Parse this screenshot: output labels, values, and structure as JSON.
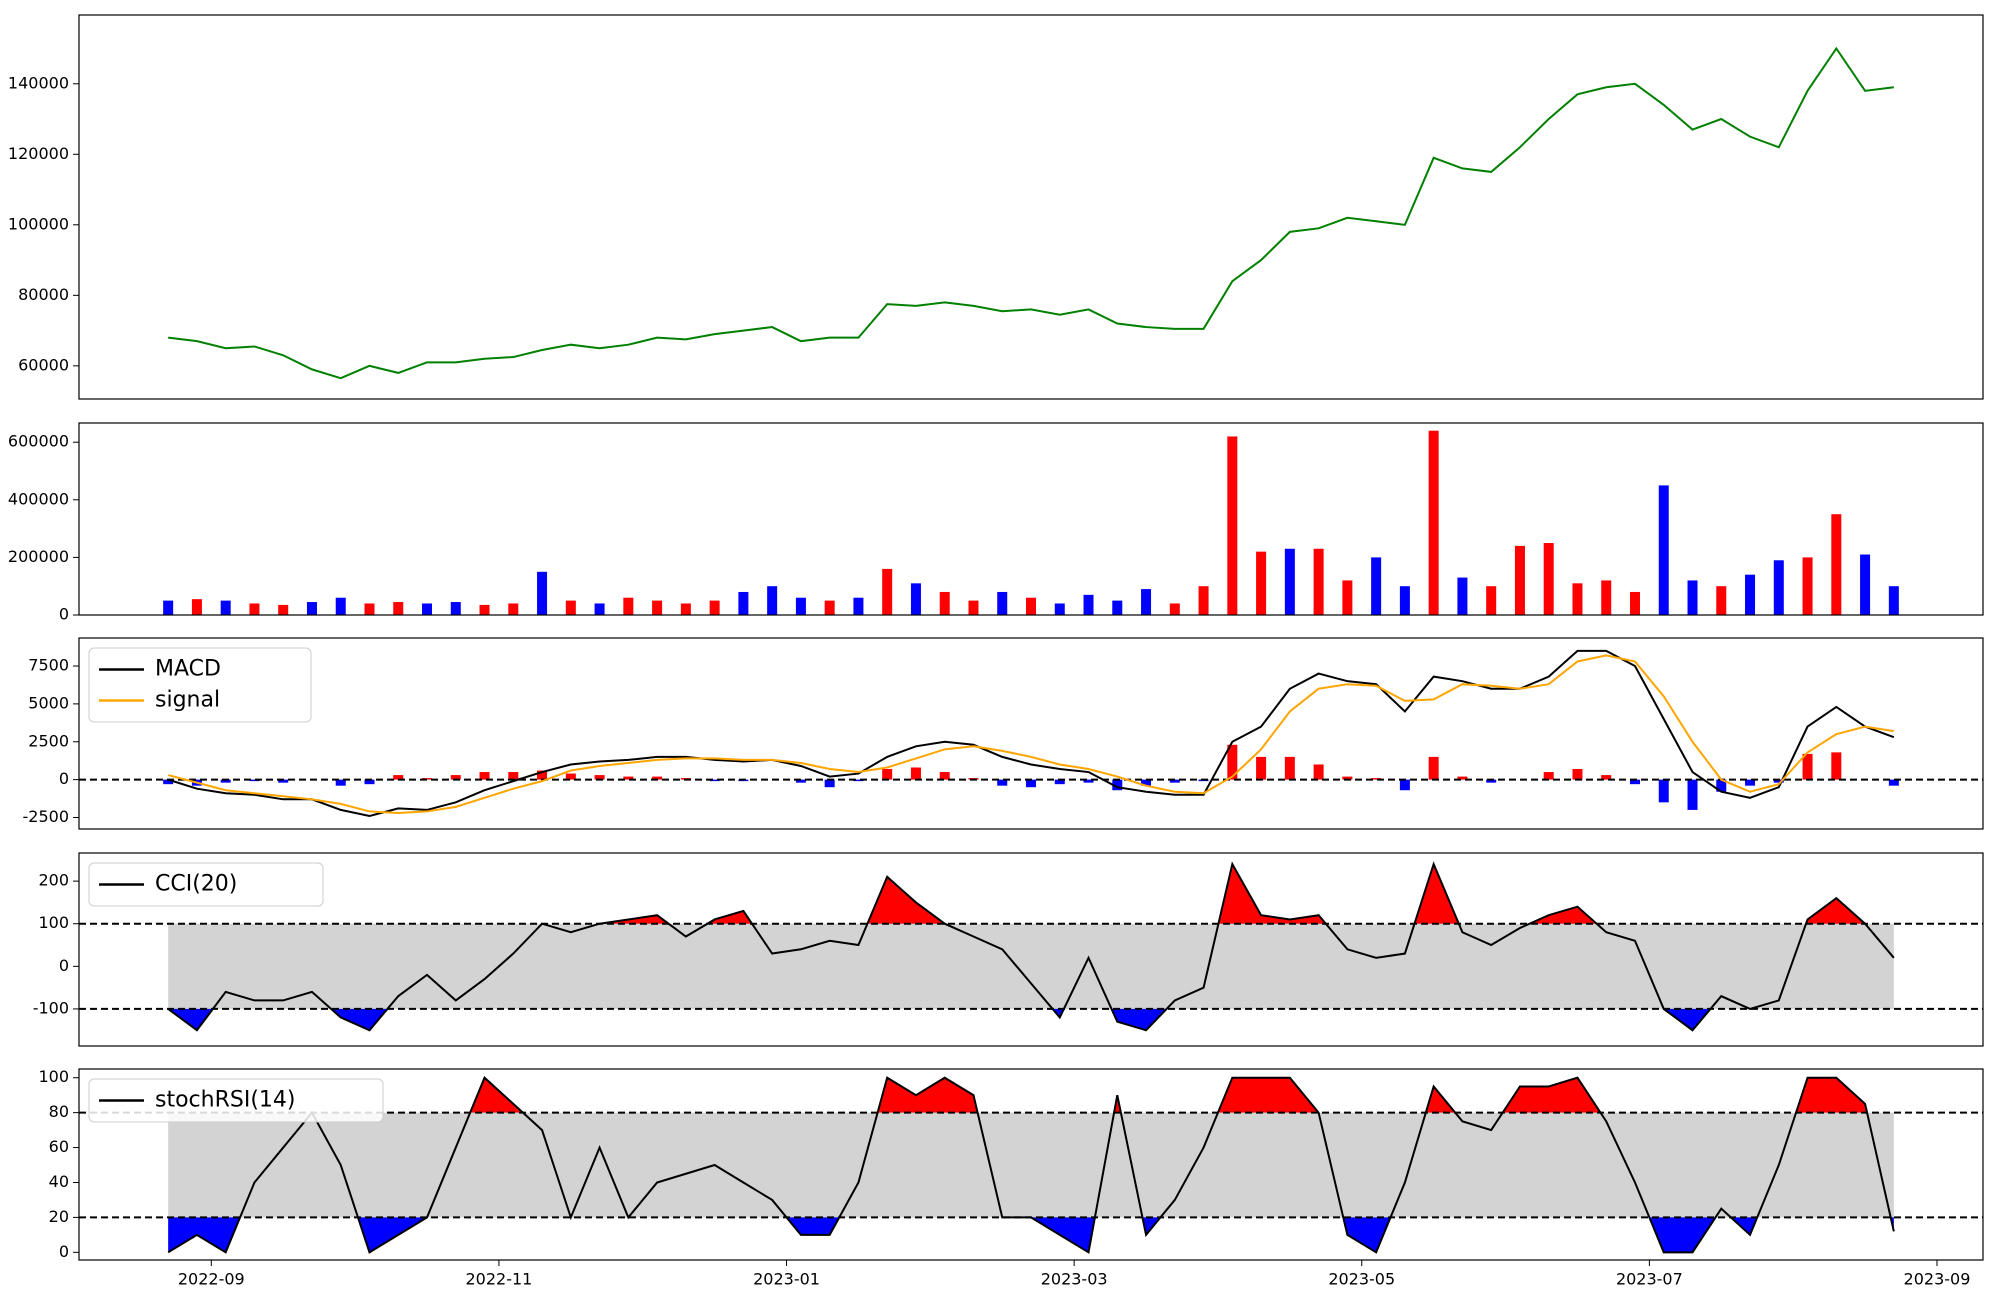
{
  "chart_data": [
    {
      "type": "line",
      "x": [
        -0.3,
        -0.1,
        0.1,
        0.3,
        0.5,
        0.7,
        0.9,
        1.1,
        1.3,
        1.5,
        1.7,
        1.9,
        2.1,
        2.3,
        2.5,
        2.7,
        2.9,
        3.1,
        3.3,
        3.5,
        3.7,
        3.9,
        4.1,
        4.3,
        4.5,
        4.7,
        4.9,
        5.1,
        5.3,
        5.5,
        5.7,
        5.9,
        6.1,
        6.3,
        6.5,
        6.7,
        6.9,
        7.1,
        7.3,
        7.5,
        7.7,
        7.9,
        8.1,
        8.3,
        8.5,
        8.7,
        8.9,
        9.1,
        9.3,
        9.5,
        9.7,
        9.9,
        10.1,
        10.3,
        10.5,
        10.7,
        10.9,
        11.1,
        11.3,
        11.5,
        11.7
      ],
      "xlim": [
        -0.92,
        12.32
      ],
      "ylim": [
        50600,
        159500
      ],
      "yticks": [
        60000,
        80000,
        100000,
        120000,
        140000
      ],
      "series": [
        {
          "color": "green",
          "values": [
            68000,
            67000,
            65000,
            65500,
            63000,
            59000,
            56500,
            60000,
            58000,
            61000,
            61000,
            62000,
            62500,
            64500,
            66000,
            65000,
            66000,
            68000,
            67500,
            69000,
            70000,
            71000,
            67000,
            68000,
            68000,
            77500,
            77000,
            78000,
            77000,
            75500,
            76000,
            74500,
            76000,
            72000,
            71000,
            70500,
            70500,
            84000,
            90000,
            98000,
            99000,
            102000,
            101000,
            100000,
            119000,
            116000,
            115000,
            122000,
            130000,
            137000,
            139000,
            140000,
            134000,
            127000,
            130000,
            125000,
            122000,
            138000,
            150000,
            138000,
            139000
          ]
        }
      ]
    },
    {
      "type": "bar",
      "x": [
        -0.3,
        -0.1,
        0.1,
        0.3,
        0.5,
        0.7,
        0.9,
        1.1,
        1.3,
        1.5,
        1.7,
        1.9,
        2.1,
        2.3,
        2.5,
        2.7,
        2.9,
        3.1,
        3.3,
        3.5,
        3.7,
        3.9,
        4.1,
        4.3,
        4.5,
        4.7,
        4.9,
        5.1,
        5.3,
        5.5,
        5.7,
        5.9,
        6.1,
        6.3,
        6.5,
        6.7,
        6.9,
        7.1,
        7.3,
        7.5,
        7.7,
        7.9,
        8.1,
        8.3,
        8.5,
        8.7,
        8.9,
        9.1,
        9.3,
        9.5,
        9.7,
        9.9,
        10.1,
        10.3,
        10.5,
        10.7,
        10.9,
        11.1,
        11.3,
        11.5,
        11.7
      ],
      "xlim": [
        -0.92,
        12.32
      ],
      "ylim": [
        0,
        666700
      ],
      "yticks": [
        0,
        200000,
        400000,
        600000
      ],
      "values": [
        50000,
        55000,
        50000,
        40000,
        35000,
        45000,
        60000,
        40000,
        45000,
        40000,
        45000,
        35000,
        40000,
        150000,
        50000,
        40000,
        60000,
        50000,
        40000,
        50000,
        80000,
        100000,
        60000,
        50000,
        60000,
        160000,
        110000,
        80000,
        50000,
        80000,
        60000,
        40000,
        70000,
        50000,
        90000,
        40000,
        100000,
        620000,
        220000,
        230000,
        230000,
        120000,
        200000,
        100000,
        640000,
        130000,
        100000,
        240000,
        250000,
        110000,
        120000,
        80000,
        450000,
        120000,
        100000,
        140000,
        190000,
        200000,
        350000,
        210000,
        100000
      ],
      "colors": [
        "blue",
        "red",
        "blue",
        "red",
        "red",
        "blue",
        "blue",
        "red",
        "red",
        "blue",
        "blue",
        "red",
        "red",
        "blue",
        "red",
        "blue",
        "red",
        "red",
        "red",
        "red",
        "blue",
        "blue",
        "blue",
        "red",
        "blue",
        "red",
        "blue",
        "red",
        "red",
        "blue",
        "red",
        "blue",
        "blue",
        "blue",
        "blue",
        "red",
        "red",
        "red",
        "red",
        "blue",
        "red",
        "red",
        "blue",
        "blue",
        "red",
        "blue",
        "red",
        "red",
        "red",
        "red",
        "red",
        "red",
        "blue",
        "blue",
        "red",
        "blue",
        "blue",
        "red",
        "red",
        "blue",
        "blue"
      ]
    },
    {
      "type": "line",
      "x": [
        -0.3,
        -0.1,
        0.1,
        0.3,
        0.5,
        0.7,
        0.9,
        1.1,
        1.3,
        1.5,
        1.7,
        1.9,
        2.1,
        2.3,
        2.5,
        2.7,
        2.9,
        3.1,
        3.3,
        3.5,
        3.7,
        3.9,
        4.1,
        4.3,
        4.5,
        4.7,
        4.9,
        5.1,
        5.3,
        5.5,
        5.7,
        5.9,
        6.1,
        6.3,
        6.5,
        6.7,
        6.9,
        7.1,
        7.3,
        7.5,
        7.7,
        7.9,
        8.1,
        8.3,
        8.5,
        8.7,
        8.9,
        9.1,
        9.3,
        9.5,
        9.7,
        9.9,
        10.1,
        10.3,
        10.5,
        10.7,
        10.9,
        11.1,
        11.3,
        11.5,
        11.7
      ],
      "xlim": [
        -0.92,
        12.32
      ],
      "ylim": [
        -3260,
        9350
      ],
      "yticks": [
        -2500,
        0,
        2500,
        5000,
        7500
      ],
      "hlines": [
        0
      ],
      "legend": "upper left",
      "series": [
        {
          "name": "MACD",
          "color": "black",
          "values": [
            0,
            -600,
            -900,
            -1000,
            -1300,
            -1300,
            -2000,
            -2400,
            -1900,
            -2000,
            -1500,
            -700,
            -100,
            500,
            1000,
            1200,
            1300,
            1500,
            1500,
            1300,
            1200,
            1300,
            900,
            200,
            400,
            1500,
            2200,
            2500,
            2300,
            1500,
            1000,
            700,
            500,
            -500,
            -800,
            -1000,
            -1000,
            2500,
            3500,
            6000,
            7000,
            6500,
            6300,
            4500,
            6800,
            6500,
            6000,
            6000,
            6800,
            8500,
            8500,
            7500,
            4000,
            500,
            -800,
            -1200,
            -500,
            3500,
            4800,
            3500,
            2800
          ]
        },
        {
          "name": "signal",
          "color": "orange",
          "values": [
            300,
            -200,
            -700,
            -900,
            -1100,
            -1300,
            -1600,
            -2100,
            -2200,
            -2100,
            -1800,
            -1200,
            -600,
            -100,
            600,
            900,
            1100,
            1300,
            1400,
            1400,
            1300,
            1300,
            1100,
            700,
            500,
            800,
            1400,
            2000,
            2200,
            1900,
            1500,
            1000,
            700,
            200,
            -400,
            -800,
            -900,
            200,
            2000,
            4500,
            6000,
            6300,
            6200,
            5200,
            5300,
            6300,
            6200,
            6000,
            6300,
            7800,
            8200,
            7800,
            5500,
            2500,
            0,
            -800,
            -300,
            1800,
            3000,
            3500,
            3200
          ]
        }
      ],
      "histogram": {
        "positive_color": "red",
        "negative_color": "blue",
        "values": [
          -300,
          -400,
          -200,
          -100,
          -200,
          0,
          -400,
          -300,
          300,
          100,
          300,
          500,
          500,
          600,
          400,
          300,
          200,
          200,
          100,
          -100,
          -100,
          0,
          -200,
          -500,
          -100,
          700,
          800,
          500,
          100,
          -400,
          -500,
          -300,
          -200,
          -700,
          -400,
          -200,
          -100,
          2300,
          1500,
          1500,
          1000,
          200,
          100,
          -700,
          1500,
          200,
          -200,
          0,
          500,
          700,
          300,
          -300,
          -1500,
          -2000,
          -800,
          -400,
          -200,
          1700,
          1800,
          0,
          -400
        ]
      }
    },
    {
      "type": "line",
      "x": [
        -0.3,
        -0.1,
        0.1,
        0.3,
        0.5,
        0.7,
        0.9,
        1.1,
        1.3,
        1.5,
        1.7,
        1.9,
        2.1,
        2.3,
        2.5,
        2.7,
        2.9,
        3.1,
        3.3,
        3.5,
        3.7,
        3.9,
        4.1,
        4.3,
        4.5,
        4.7,
        4.9,
        5.1,
        5.3,
        5.5,
        5.7,
        5.9,
        6.1,
        6.3,
        6.5,
        6.7,
        6.9,
        7.1,
        7.3,
        7.5,
        7.7,
        7.9,
        8.1,
        8.3,
        8.5,
        8.7,
        8.9,
        9.1,
        9.3,
        9.5,
        9.7,
        9.9,
        10.1,
        10.3,
        10.5,
        10.7,
        10.9,
        11.1,
        11.3,
        11.5,
        11.7
      ],
      "xlim": [
        -0.92,
        12.32
      ],
      "ylim": [
        -187,
        266
      ],
      "yticks": [
        -100,
        0,
        100,
        200
      ],
      "hlines": [
        100,
        -100
      ],
      "legend": "upper left",
      "band_color": "lightgray",
      "upper_color": "red",
      "lower_color": "blue",
      "series": [
        {
          "name": "CCI(20)",
          "color": "black",
          "values": [
            -100,
            -150,
            -60,
            -80,
            -80,
            -60,
            -120,
            -150,
            -70,
            -20,
            -80,
            -30,
            30,
            100,
            80,
            100,
            110,
            120,
            70,
            110,
            130,
            30,
            40,
            60,
            50,
            210,
            150,
            100,
            70,
            40,
            -40,
            -120,
            20,
            -130,
            -150,
            -80,
            -50,
            240,
            120,
            110,
            120,
            40,
            20,
            30,
            240,
            80,
            50,
            90,
            120,
            140,
            80,
            60,
            -100,
            -150,
            -70,
            -100,
            -80,
            110,
            160,
            100,
            20
          ]
        }
      ]
    },
    {
      "type": "line",
      "x": [
        -0.3,
        -0.1,
        0.1,
        0.3,
        0.5,
        0.7,
        0.9,
        1.1,
        1.3,
        1.5,
        1.7,
        1.9,
        2.1,
        2.3,
        2.5,
        2.7,
        2.9,
        3.1,
        3.3,
        3.5,
        3.7,
        3.9,
        4.1,
        4.3,
        4.5,
        4.7,
        4.9,
        5.1,
        5.3,
        5.5,
        5.7,
        5.9,
        6.1,
        6.3,
        6.5,
        6.7,
        6.9,
        7.1,
        7.3,
        7.5,
        7.7,
        7.9,
        8.1,
        8.3,
        8.5,
        8.7,
        8.9,
        9.1,
        9.3,
        9.5,
        9.7,
        9.9,
        10.1,
        10.3,
        10.5,
        10.7,
        10.9,
        11.1,
        11.3,
        11.5,
        11.7
      ],
      "xlim": [
        -0.92,
        12.32
      ],
      "ylim": [
        -4.4,
        105
      ],
      "yticks": [
        0,
        20,
        40,
        60,
        80,
        100
      ],
      "hlines": [
        80,
        20
      ],
      "legend": "upper left",
      "band_color": "lightgray",
      "upper_color": "red",
      "lower_color": "blue",
      "xticks": [
        {
          "value": 0,
          "label": "2022-09"
        },
        {
          "value": 2,
          "label": "2022-11"
        },
        {
          "value": 4,
          "label": "2023-01"
        },
        {
          "value": 6,
          "label": "2023-03"
        },
        {
          "value": 8,
          "label": "2023-05"
        },
        {
          "value": 10,
          "label": "2023-07"
        },
        {
          "value": 12,
          "label": "2023-09"
        }
      ],
      "series": [
        {
          "name": "stochRSI(14)",
          "color": "black",
          "values": [
            0,
            10,
            0,
            40,
            60,
            80,
            50,
            0,
            10,
            20,
            60,
            100,
            85,
            70,
            20,
            60,
            20,
            40,
            45,
            50,
            40,
            30,
            10,
            10,
            40,
            100,
            90,
            100,
            90,
            20,
            20,
            10,
            0,
            90,
            10,
            30,
            60,
            100,
            100,
            100,
            80,
            10,
            0,
            40,
            95,
            75,
            70,
            95,
            95,
            100,
            75,
            40,
            0,
            0,
            25,
            10,
            50,
            100,
            100,
            85,
            12
          ]
        }
      ]
    }
  ]
}
